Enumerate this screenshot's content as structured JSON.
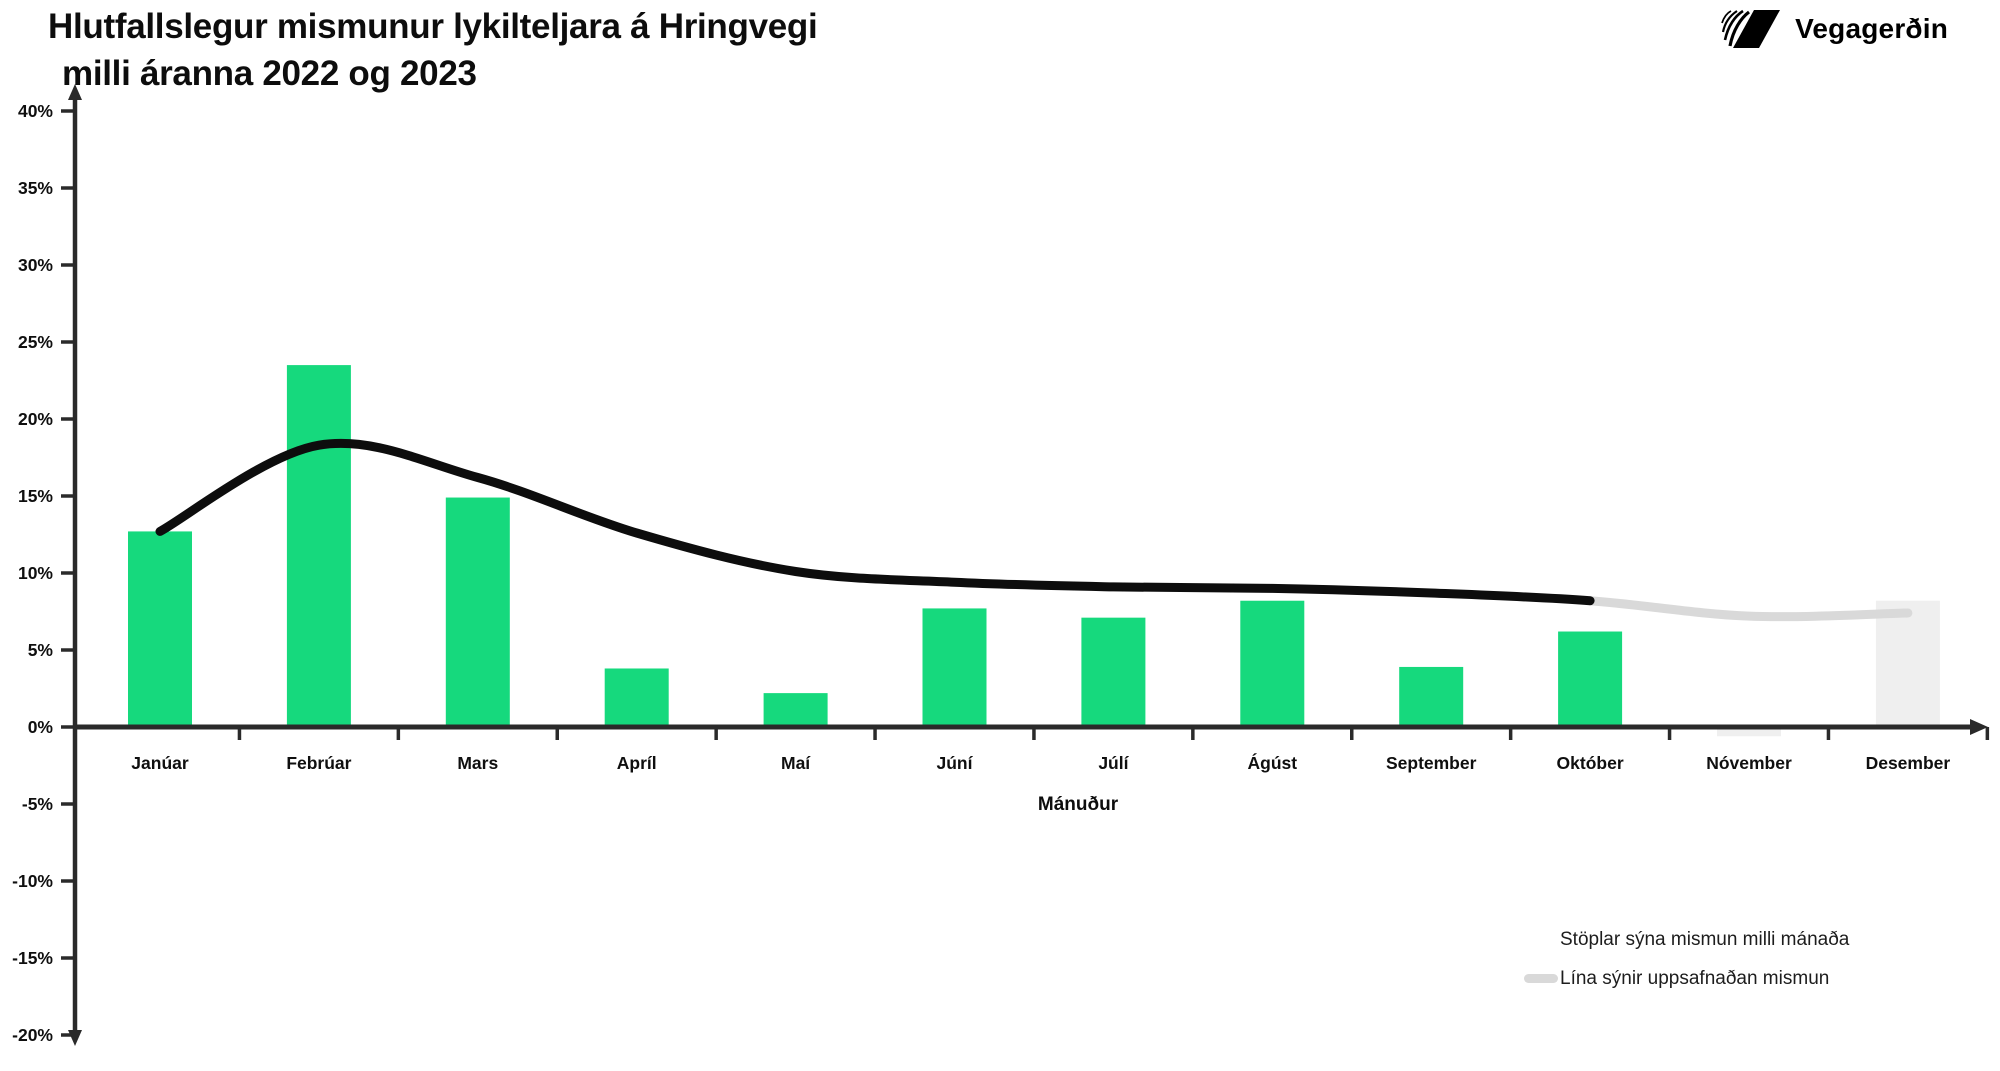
{
  "title": {
    "line1": "Hlutfallslegur mismunur lykilteljara á Hringvegi",
    "line2": "milli áranna 2022 og 2023"
  },
  "logo": {
    "text": "Vegagerðin"
  },
  "legend": {
    "bars_label": "Stöplar sýna mismun milli mánaða",
    "line_label": "Lína sýnir uppsafnaðan mismun"
  },
  "colors": {
    "bar_green": "#16d97d",
    "bar_muted": "#efefef",
    "line_black": "#0d0d0d",
    "line_gray": "#d9d9d9",
    "axis": "#2a2a2a",
    "text": "#0f0f0f"
  },
  "chart_data": {
    "type": "bar",
    "title": "Hlutfallslegur mismunur lykilteljara á Hringvegi milli áranna 2022 og 2023",
    "xlabel": "Mánuður",
    "ylabel": "",
    "ylim": [
      -20,
      40
    ],
    "grid": false,
    "legend_position": "bottom-right",
    "categories": [
      "Janúar",
      "Febrúar",
      "Mars",
      "Apríl",
      "Maí",
      "Júní",
      "Júlí",
      "Ágúst",
      "September",
      "Október",
      "Nóvember",
      "Desember"
    ],
    "y_tick_labels": [
      "40%",
      "35%",
      "30%",
      "25%",
      "20%",
      "15%",
      "10%",
      "5%",
      "0%",
      "-5%",
      "-10%",
      "-15%",
      "-20%"
    ],
    "y_tick_values": [
      40,
      35,
      30,
      25,
      20,
      15,
      10,
      5,
      0,
      -5,
      -10,
      -15,
      -20
    ],
    "series": [
      {
        "name": "Stöplar sýna mismun milli mánaða",
        "type": "bar",
        "values": [
          12.7,
          23.5,
          14.9,
          3.8,
          2.2,
          7.7,
          7.1,
          8.2,
          3.9,
          6.2,
          -0.6,
          8.2
        ],
        "muted_categories": [
          "Nóvember",
          "Desember"
        ]
      },
      {
        "name": "Lína sýnir uppsafnaðan mismun",
        "type": "line",
        "values": [
          12.7,
          18.3,
          16.2,
          12.6,
          10.1,
          9.4,
          9.1,
          9.0,
          8.7,
          8.2,
          7.2,
          7.4
        ],
        "black_through_category": "Október"
      }
    ]
  }
}
